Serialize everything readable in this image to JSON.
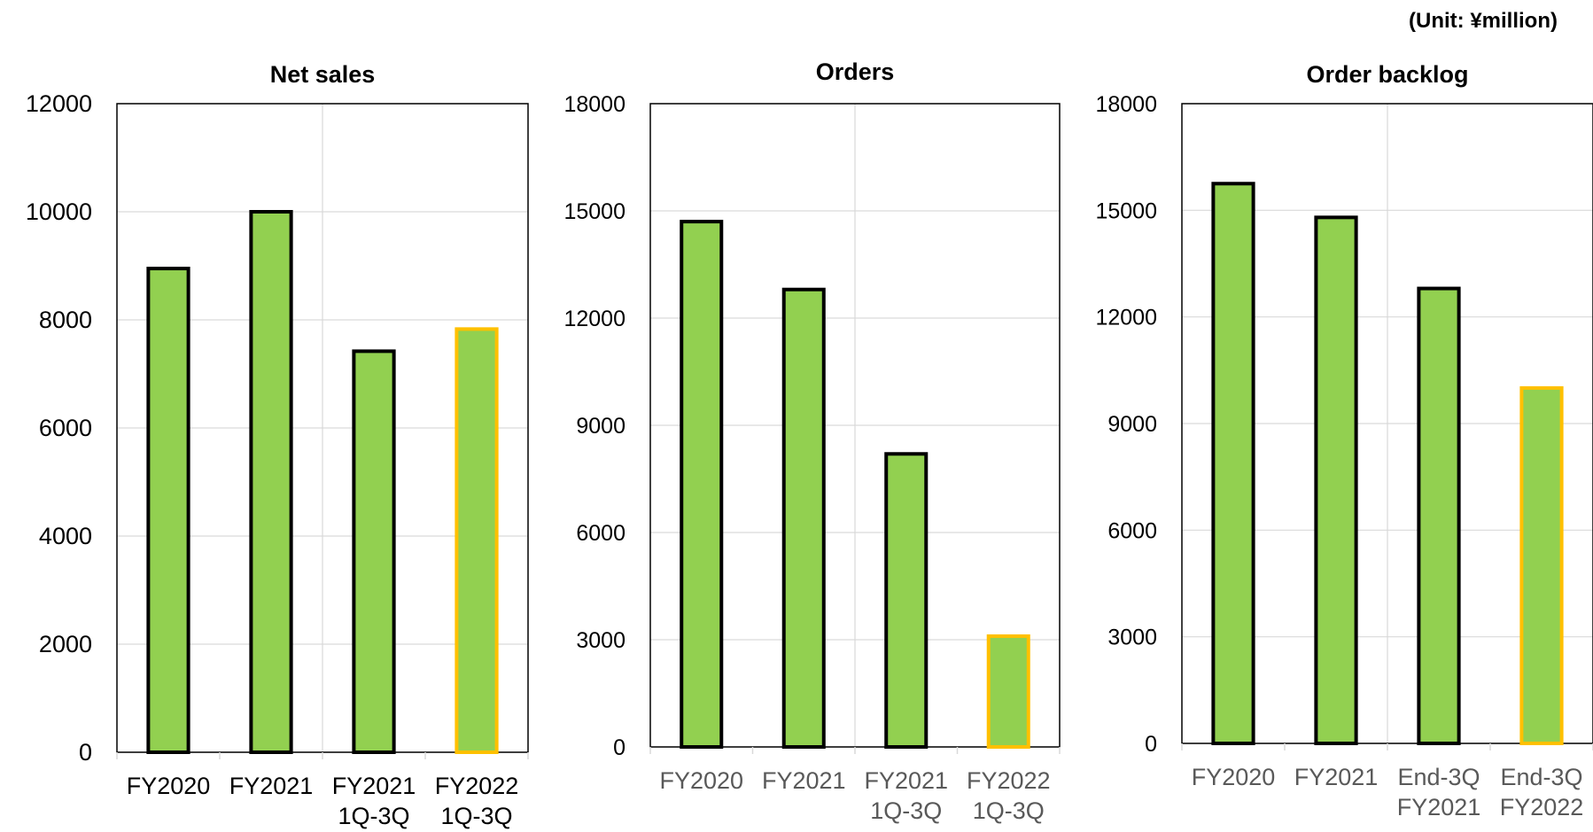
{
  "unit_label": "(Unit: ¥million)",
  "colors": {
    "bar_fill": "#92d050",
    "bar_stroke": "#000000",
    "highlight_stroke": "#ffc000",
    "grid": "#d9d9d9"
  },
  "chart_data": [
    {
      "type": "bar",
      "title": "Net sales",
      "categories": [
        [
          "FY2020"
        ],
        [
          "FY2021"
        ],
        [
          "FY2021",
          "1Q-3Q"
        ],
        [
          "FY2022",
          "1Q-3Q"
        ]
      ],
      "values": [
        8950,
        10000,
        7420,
        7830
      ],
      "highlight_index": 3,
      "ylim": [
        0,
        12000
      ],
      "yticks": [
        "0",
        "2000",
        "4000",
        "6000",
        "8000",
        "10000",
        "12000"
      ],
      "grid": true
    },
    {
      "type": "bar",
      "title": "Orders",
      "categories": [
        [
          "FY2020"
        ],
        [
          "FY2021"
        ],
        [
          "FY2021",
          "1Q-3Q"
        ],
        [
          "FY2022",
          "1Q-3Q"
        ]
      ],
      "values": [
        14700,
        12800,
        8200,
        3100
      ],
      "highlight_index": 3,
      "ylim": [
        0,
        18000
      ],
      "yticks": [
        "0",
        "3000",
        "6000",
        "9000",
        "12000",
        "15000",
        "18000"
      ],
      "grid": true
    },
    {
      "type": "bar",
      "title": "Order backlog",
      "categories": [
        [
          "FY2020"
        ],
        [
          "FY2021"
        ],
        [
          "End-3Q",
          "FY2021"
        ],
        [
          "End-3Q",
          "FY2022"
        ]
      ],
      "values": [
        15750,
        14800,
        12800,
        10000
      ],
      "highlight_index": 3,
      "ylim": [
        0,
        18000
      ],
      "yticks": [
        "0",
        "3000",
        "6000",
        "9000",
        "12000",
        "15000",
        "18000"
      ],
      "grid": true
    }
  ]
}
